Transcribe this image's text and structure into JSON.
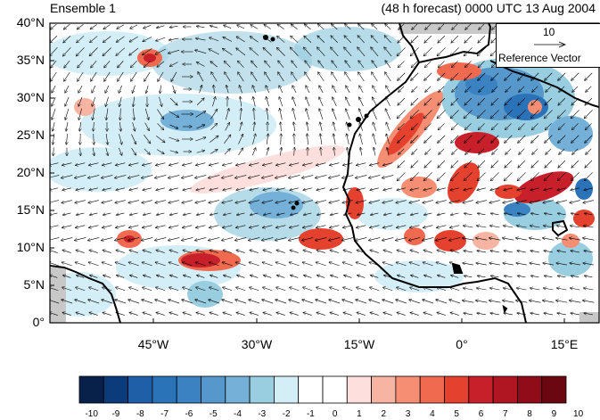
{
  "header": {
    "title_left": "Ensemble 1",
    "title_right": "(48 h forecast) 0000 UTC 13 Aug 2004"
  },
  "map": {
    "lat_labels": [
      "40°N",
      "35°N",
      "30°N",
      "25°N",
      "20°N",
      "15°N",
      "10°N",
      "5°N",
      "0°"
    ],
    "lon_labels": [
      "45°W",
      "30°W",
      "15°W",
      "0°",
      "15°E"
    ],
    "lat_range": [
      0,
      40
    ],
    "lon_range": [
      -60,
      20
    ]
  },
  "reference_vector": {
    "magnitude": "10",
    "label": "Reference Vector"
  },
  "colorbar": {
    "labels": [
      "-10",
      "-9",
      "-8",
      "-7",
      "-6",
      "-5",
      "-4",
      "-3",
      "-2",
      "-1",
      "0",
      "1",
      "2",
      "3",
      "4",
      "5",
      "6",
      "7",
      "8",
      "9",
      "10"
    ],
    "colors": [
      "#08214a",
      "#0b3b7a",
      "#1f5fa8",
      "#2b73b9",
      "#3a82c2",
      "#5698cc",
      "#74b0d8",
      "#99cde0",
      "#d4eef7",
      "#ffffff",
      "#ffffff",
      "#fde0dd",
      "#f8b4a2",
      "#f68e74",
      "#f06a4f",
      "#e4412e",
      "#c8202a",
      "#b01522",
      "#8f0c18",
      "#6b0710"
    ]
  }
}
